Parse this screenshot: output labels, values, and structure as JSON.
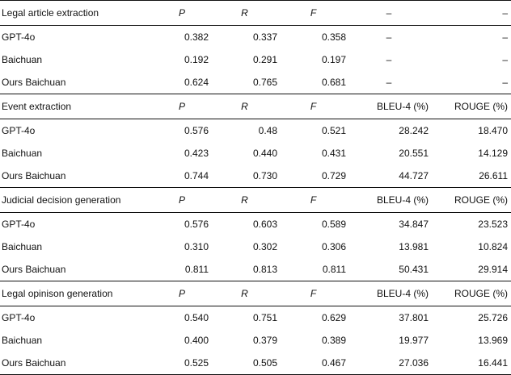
{
  "sections": [
    {
      "header": {
        "label": "Legal article extraction",
        "p": "P",
        "r": "R",
        "f": "F",
        "bleu": "–",
        "rouge": "–"
      },
      "rows": [
        {
          "name": "GPT-4o",
          "p": "0.382",
          "r": "0.337",
          "f": "0.358",
          "bleu": "–",
          "rouge": "–"
        },
        {
          "name": "Baichuan",
          "p": "0.192",
          "r": "0.291",
          "f": "0.197",
          "bleu": "–",
          "rouge": "–"
        },
        {
          "name": "Ours Baichuan",
          "p": "0.624",
          "r": "0.765",
          "f": "0.681",
          "bleu": "–",
          "rouge": "–"
        }
      ]
    },
    {
      "header": {
        "label": "Event extraction",
        "p": "P",
        "r": "R",
        "f": "F",
        "bleu": "BLEU-4 (%)",
        "rouge": "ROUGE (%)"
      },
      "rows": [
        {
          "name": "GPT-4o",
          "p": "0.576",
          "r": "0.48",
          "f": "0.521",
          "bleu": "28.242",
          "rouge": "18.470"
        },
        {
          "name": "Baichuan",
          "p": "0.423",
          "r": "0.440",
          "f": "0.431",
          "bleu": "20.551",
          "rouge": "14.129"
        },
        {
          "name": "Ours Baichuan",
          "p": "0.744",
          "r": "0.730",
          "f": "0.729",
          "bleu": "44.727",
          "rouge": "26.611"
        }
      ]
    },
    {
      "header": {
        "label": "Judicial decision generation",
        "p": "P",
        "r": "R",
        "f": "F",
        "bleu": "BLEU-4 (%)",
        "rouge": "ROUGE (%)"
      },
      "rows": [
        {
          "name": "GPT-4o",
          "p": "0.576",
          "r": "0.603",
          "f": "0.589",
          "bleu": "34.847",
          "rouge": "23.523"
        },
        {
          "name": "Baichuan",
          "p": "0.310",
          "r": "0.302",
          "f": "0.306",
          "bleu": "13.981",
          "rouge": "10.824"
        },
        {
          "name": "Ours Baichuan",
          "p": "0.811",
          "r": "0.813",
          "f": "0.811",
          "bleu": "50.431",
          "rouge": "29.914"
        }
      ]
    },
    {
      "header": {
        "label": "Legal opinison generation",
        "p": "P",
        "r": "R",
        "f": "F",
        "bleu": "BLEU-4 (%)",
        "rouge": "ROUGE (%)"
      },
      "rows": [
        {
          "name": "GPT-4o",
          "p": "0.540",
          "r": "0.751",
          "f": "0.629",
          "bleu": "37.801",
          "rouge": "25.726"
        },
        {
          "name": "Baichuan",
          "p": "0.400",
          "r": "0.379",
          "f": "0.389",
          "bleu": "19.977",
          "rouge": "13.969"
        },
        {
          "name": "Ours Baichuan",
          "p": "0.525",
          "r": "0.505",
          "f": "0.467",
          "bleu": "27.036",
          "rouge": "16.441"
        }
      ]
    }
  ]
}
